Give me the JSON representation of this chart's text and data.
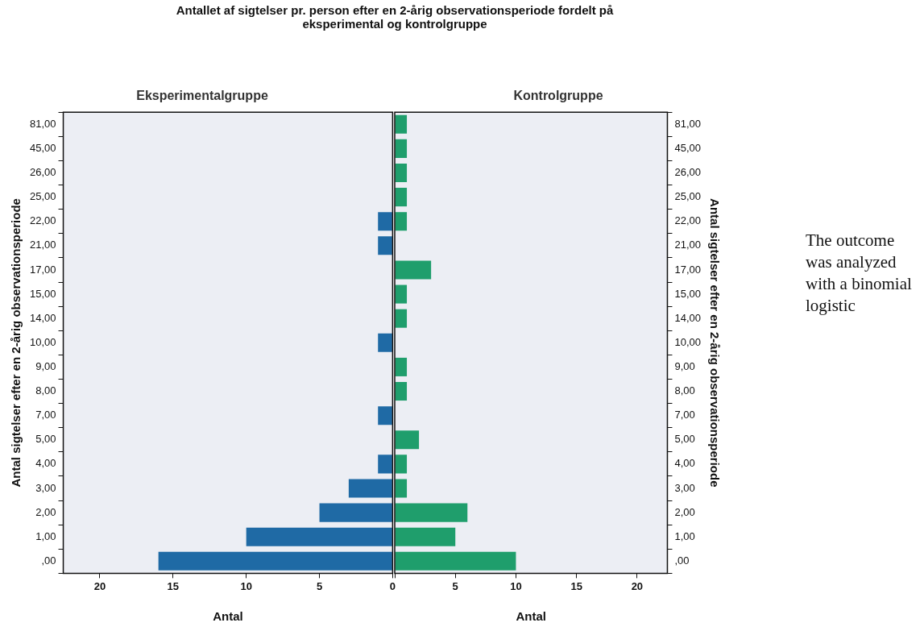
{
  "chart_data": [
    {
      "type": "bar",
      "orientation": "horizontal",
      "title": "Antallet af sigtelser pr. person efter en 2-årig observationsperiode fordelt på eksperimental og kontrolgruppe",
      "subtitle": "Eksperimentalgruppe",
      "xlabel": "Antal",
      "ylabel": "Antal sigtelser efter en 2-årig observationsperiode",
      "categories": [
        "81,00",
        "45,00",
        "26,00",
        "25,00",
        "22,00",
        "21,00",
        "17,00",
        "15,00",
        "14,00",
        "10,00",
        "9,00",
        "8,00",
        "7,00",
        "5,00",
        "4,00",
        "3,00",
        "2,00",
        "1,00",
        ",00"
      ],
      "values": [
        null,
        null,
        null,
        null,
        1,
        1,
        null,
        null,
        null,
        1,
        null,
        null,
        1,
        null,
        1,
        3,
        5,
        10,
        16
      ],
      "color": "#1f6aa5",
      "xlim": [
        22.5,
        0
      ],
      "xticks": [
        20,
        15,
        10,
        5,
        0
      ],
      "grid": false,
      "legend": false
    },
    {
      "type": "bar",
      "orientation": "horizontal",
      "subtitle": "Kontrolgruppe",
      "xlabel": "Antal",
      "ylabel": "Antal sigtelser efter en 2-årig observationsperiode",
      "categories": [
        "81,00",
        "45,00",
        "26,00",
        "25,00",
        "22,00",
        "21,00",
        "17,00",
        "15,00",
        "14,00",
        "10,00",
        "9,00",
        "8,00",
        "7,00",
        "5,00",
        "4,00",
        "3,00",
        "2,00",
        "1,00",
        ",00"
      ],
      "values": [
        1,
        1,
        1,
        1,
        1,
        null,
        3,
        1,
        1,
        null,
        1,
        1,
        null,
        2,
        1,
        1,
        6,
        5,
        10
      ],
      "color": "#1f9e6c",
      "xlim": [
        0,
        22.5
      ],
      "xticks": [
        {
          "value": 0,
          "label": null
        },
        5,
        10,
        15,
        20
      ],
      "grid": false,
      "legend": false,
      "annotations": [
        "The outcome was analyzed with a binomial logistic"
      ]
    }
  ]
}
